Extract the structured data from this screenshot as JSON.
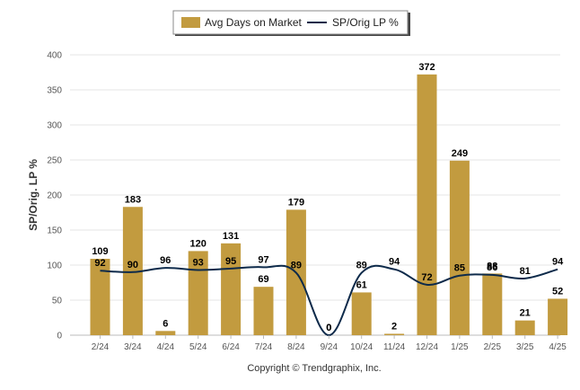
{
  "chart_data": {
    "type": "bar",
    "categories": [
      "2/24",
      "3/24",
      "4/24",
      "5/24",
      "6/24",
      "7/24",
      "8/24",
      "9/24",
      "10/24",
      "11/24",
      "12/24",
      "1/25",
      "2/25",
      "3/25",
      "4/25"
    ],
    "series": [
      {
        "name": "Avg Days on Market",
        "type": "bar",
        "color": "#C29B3F",
        "values": [
          109,
          183,
          6,
          120,
          131,
          69,
          179,
          0,
          61,
          2,
          372,
          249,
          88,
          21,
          52
        ]
      },
      {
        "name": "SP/Orig LP %",
        "type": "line",
        "color": "#0D2A4A",
        "values": [
          92,
          90,
          96,
          93,
          95,
          97,
          89,
          0,
          89,
          94,
          72,
          85,
          86,
          81,
          94
        ]
      }
    ],
    "ylabel": "SP/Orig. LP %",
    "ylim": [
      0,
      400
    ],
    "yticks": [
      0,
      50,
      100,
      150,
      200,
      250,
      300,
      350,
      400
    ],
    "grid": true,
    "legend": "top-center"
  },
  "copyright": "Copyright © Trendgraphix, Inc."
}
